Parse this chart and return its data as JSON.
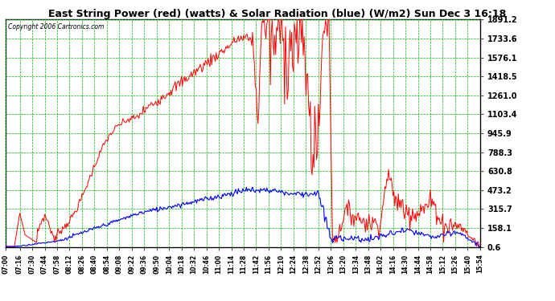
{
  "title": "East String Power (red) (watts) & Solar Radiation (blue) (W/m2) Sun Dec 3 16:18",
  "copyright": "Copyright 2006 Cartronics.com",
  "background_color": "#ffffff",
  "plot_bg_color": "#ffffff",
  "grid_color": "#00bb00",
  "y_min": 0.6,
  "y_max": 1891.2,
  "y_ticks": [
    0.6,
    158.1,
    315.7,
    473.2,
    630.8,
    788.3,
    945.9,
    1103.4,
    1261.0,
    1418.5,
    1576.1,
    1733.6,
    1891.2
  ],
  "x_tick_labels": [
    "07:00",
    "07:16",
    "07:30",
    "07:44",
    "07:58",
    "08:12",
    "08:26",
    "08:40",
    "08:54",
    "09:08",
    "09:22",
    "09:36",
    "09:50",
    "10:04",
    "10:18",
    "10:32",
    "10:46",
    "11:00",
    "11:14",
    "11:28",
    "11:42",
    "11:56",
    "12:10",
    "12:24",
    "12:38",
    "12:52",
    "13:06",
    "13:20",
    "13:34",
    "13:48",
    "14:02",
    "14:16",
    "14:30",
    "14:44",
    "14:58",
    "15:12",
    "15:26",
    "15:40",
    "15:54"
  ],
  "red_color": "#ff0000",
  "blue_color": "#0000ff"
}
